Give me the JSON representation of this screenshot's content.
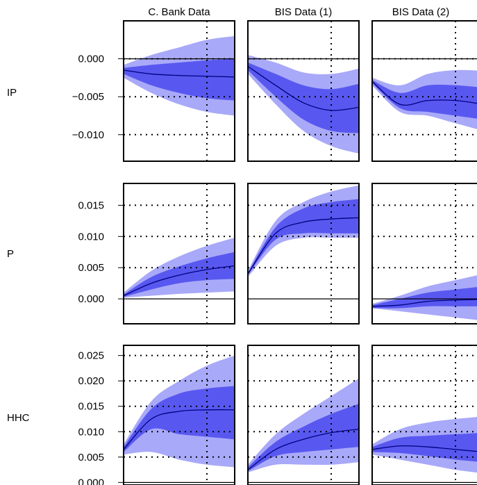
{
  "columns": [
    "C. Bank Data",
    "BIS Data (1)",
    "BIS Data (2)"
  ],
  "colors": {
    "outer_band": "#a9a9f9",
    "inner_band": "#5858f0",
    "median_line": "#000080",
    "frame": "#000000"
  },
  "chart_data": [
    {
      "type": "area",
      "row_label": "IP",
      "ylim": [
        -0.0135,
        0.005
      ],
      "yticks": [
        0.0,
        -0.005,
        -0.01
      ],
      "ytick_labels": [
        "0.000",
        "−0.005",
        "−0.010"
      ],
      "hlines": [
        0.0,
        -0.005,
        -0.01
      ],
      "zero_line": 0.0,
      "x": [
        0,
        12,
        24,
        36,
        48
      ],
      "vline_x": 36,
      "panels": [
        {
          "column": "C. Bank Data",
          "outer_lo": [
            -0.0025,
            -0.0045,
            -0.006,
            -0.007,
            -0.0075
          ],
          "inner_lo": [
            -0.002,
            -0.0035,
            -0.0045,
            -0.0052,
            -0.0055
          ],
          "median": [
            -0.0015,
            -0.002,
            -0.0022,
            -0.0023,
            -0.0024
          ],
          "inner_hi": [
            -0.0012,
            -0.0008,
            -0.0005,
            -0.0002,
            0.0
          ],
          "outer_hi": [
            -0.0008,
            0.0005,
            0.0015,
            0.0025,
            0.003
          ]
        },
        {
          "column": "BIS Data (1)",
          "outer_lo": [
            -0.002,
            -0.006,
            -0.0095,
            -0.0115,
            -0.0125
          ],
          "inner_lo": [
            -0.0015,
            -0.005,
            -0.008,
            -0.0095,
            -0.0098
          ],
          "median": [
            -0.001,
            -0.0035,
            -0.0058,
            -0.0068,
            -0.0064
          ],
          "inner_hi": [
            -0.0005,
            -0.002,
            -0.0035,
            -0.004,
            -0.0033
          ],
          "outer_hi": [
            0.0005,
            -0.0005,
            -0.0018,
            -0.002,
            -0.0013
          ]
        },
        {
          "column": "BIS Data (2)",
          "outer_lo": [
            -0.0035,
            -0.007,
            -0.0075,
            -0.0085,
            -0.0095
          ],
          "inner_lo": [
            -0.0032,
            -0.0065,
            -0.007,
            -0.0075,
            -0.008
          ],
          "median": [
            -0.003,
            -0.006,
            -0.0055,
            -0.0055,
            -0.006
          ],
          "inner_hi": [
            -0.0028,
            -0.0045,
            -0.0035,
            -0.0035,
            -0.0038
          ],
          "outer_hi": [
            -0.0025,
            -0.0035,
            -0.002,
            -0.0015,
            -0.0016
          ]
        }
      ]
    },
    {
      "type": "area",
      "row_label": "P",
      "ylim": [
        -0.004,
        0.0185
      ],
      "yticks": [
        0.015,
        0.01,
        0.005,
        0.0
      ],
      "ytick_labels": [
        "0.015",
        "0.010",
        "0.005",
        "0.000"
      ],
      "hlines": [
        0.015,
        0.01,
        0.005
      ],
      "zero_line": 0.0,
      "x": [
        0,
        12,
        24,
        36,
        48
      ],
      "vline_x": 36,
      "panels": [
        {
          "column": "C. Bank Data",
          "outer_lo": [
            0.0002,
            0.0005,
            0.0008,
            0.001,
            0.0012
          ],
          "inner_lo": [
            0.0003,
            0.0015,
            0.0025,
            0.003,
            0.0032
          ],
          "median": [
            0.0005,
            0.0025,
            0.0038,
            0.0047,
            0.0053
          ],
          "inner_hi": [
            0.0007,
            0.0035,
            0.0052,
            0.0065,
            0.0075
          ],
          "outer_hi": [
            0.001,
            0.0045,
            0.0068,
            0.0085,
            0.0098
          ]
        },
        {
          "column": "BIS Data (1)",
          "outer_lo": [
            0.0035,
            0.0085,
            0.0098,
            0.0098,
            0.0098
          ],
          "inner_lo": [
            0.0038,
            0.0095,
            0.0105,
            0.0105,
            0.0105
          ],
          "median": [
            0.004,
            0.0105,
            0.0123,
            0.0128,
            0.013
          ],
          "inner_hi": [
            0.0042,
            0.0115,
            0.0145,
            0.0155,
            0.016
          ],
          "outer_hi": [
            0.0045,
            0.0125,
            0.0155,
            0.0172,
            0.0182
          ]
        },
        {
          "column": "BIS Data (2)",
          "outer_lo": [
            -0.0015,
            -0.002,
            -0.0025,
            -0.003,
            -0.0035
          ],
          "inner_lo": [
            -0.0015,
            -0.0015,
            -0.0012,
            -0.0012,
            -0.0012
          ],
          "median": [
            -0.0012,
            -0.001,
            -0.0004,
            -0.0002,
            -0.0001
          ],
          "inner_hi": [
            -0.001,
            0.0,
            0.001,
            0.0015,
            0.002
          ],
          "outer_hi": [
            -0.0008,
            0.0005,
            0.002,
            0.003,
            0.004
          ]
        }
      ]
    },
    {
      "type": "area",
      "row_label": "HHC",
      "ylim": [
        -0.0005,
        0.027
      ],
      "yticks": [
        0.025,
        0.02,
        0.015,
        0.01,
        0.005,
        0.0
      ],
      "ytick_labels": [
        "0.025",
        "0.020",
        "0.015",
        "0.010",
        "0.005",
        "0.000"
      ],
      "hlines": [
        0.025,
        0.02,
        0.015,
        0.01,
        0.005
      ],
      "zero_line": 0.0,
      "x": [
        0,
        12,
        24,
        36,
        48
      ],
      "vline_x": 36,
      "panels": [
        {
          "column": "C. Bank Data",
          "outer_lo": [
            0.0055,
            0.006,
            0.0045,
            0.0035,
            0.003
          ],
          "inner_lo": [
            0.006,
            0.0105,
            0.0095,
            0.009,
            0.0085
          ],
          "median": [
            0.0065,
            0.0125,
            0.014,
            0.0143,
            0.0143
          ],
          "inner_hi": [
            0.007,
            0.0145,
            0.0175,
            0.0185,
            0.019
          ],
          "outer_hi": [
            0.0075,
            0.016,
            0.02,
            0.023,
            0.025
          ]
        },
        {
          "column": "BIS Data (1)",
          "outer_lo": [
            0.002,
            0.0035,
            0.0035,
            0.0035,
            0.004
          ],
          "inner_lo": [
            0.0022,
            0.0052,
            0.006,
            0.0065,
            0.007
          ],
          "median": [
            0.0025,
            0.0065,
            0.0085,
            0.0098,
            0.0105
          ],
          "inner_hi": [
            0.003,
            0.008,
            0.011,
            0.0135,
            0.0155
          ],
          "outer_hi": [
            0.0035,
            0.0095,
            0.0135,
            0.017,
            0.0205
          ]
        },
        {
          "column": "BIS Data (2)",
          "outer_lo": [
            0.0055,
            0.0045,
            0.0035,
            0.0025,
            0.0018
          ],
          "inner_lo": [
            0.006,
            0.0058,
            0.0052,
            0.0045,
            0.004
          ],
          "median": [
            0.0065,
            0.0072,
            0.007,
            0.0065,
            0.006
          ],
          "inner_hi": [
            0.007,
            0.0088,
            0.0092,
            0.0095,
            0.0098
          ],
          "outer_hi": [
            0.0075,
            0.0105,
            0.0118,
            0.0125,
            0.013
          ]
        }
      ]
    }
  ]
}
